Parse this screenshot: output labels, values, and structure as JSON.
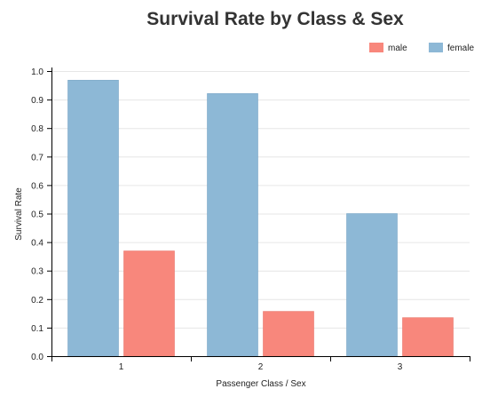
{
  "chart_data": {
    "type": "bar",
    "title": "Survival Rate by Class & Sex",
    "xlabel": "Passenger Class / Sex",
    "ylabel": "Survival Rate",
    "categories": [
      "1",
      "2",
      "3"
    ],
    "series": [
      {
        "name": "female",
        "values": [
          0.968,
          0.921,
          0.5
        ],
        "color": "#8db8d6"
      },
      {
        "name": "male",
        "values": [
          0.369,
          0.157,
          0.135
        ],
        "color": "#f8877c"
      }
    ],
    "legend_order": [
      "male",
      "female"
    ],
    "yticks": [
      "0.0",
      "0.1",
      "0.2",
      "0.3",
      "0.4",
      "0.5",
      "0.6",
      "0.7",
      "0.8",
      "0.9",
      "1.0"
    ],
    "ylim": [
      0,
      1.0
    ],
    "grid": true,
    "legend_position": "top-right"
  }
}
